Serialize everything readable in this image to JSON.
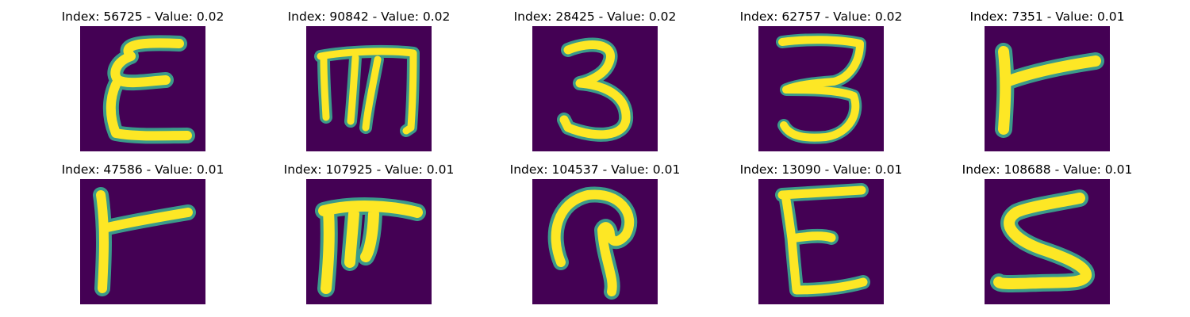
{
  "colors": {
    "background": "#440154",
    "stroke": "#fde725",
    "edge": "#3b9a8a"
  },
  "panels": [
    {
      "title": "Index: 56725 - Value: 0.02",
      "glyph": "epsilon-like"
    },
    {
      "title": "Index: 90842 - Value: 0.02",
      "glyph": "m-like"
    },
    {
      "title": "Index: 28425 - Value: 0.02",
      "glyph": "three"
    },
    {
      "title": "Index: 62757 - Value: 0.02",
      "glyph": "three-flat-top"
    },
    {
      "title": "Index: 7351 - Value: 0.01",
      "glyph": "r-like"
    },
    {
      "title": "Index: 47586 - Value: 0.01",
      "glyph": "y-like"
    },
    {
      "title": "Index: 107925 - Value: 0.01",
      "glyph": "trident-like"
    },
    {
      "title": "Index: 104537 - Value: 0.01",
      "glyph": "looped-stroke"
    },
    {
      "title": "Index: 13090 - Value: 0.01",
      "glyph": "epsilon-flat-top"
    },
    {
      "title": "Index: 108688 - Value: 0.01",
      "glyph": "five-like"
    }
  ]
}
